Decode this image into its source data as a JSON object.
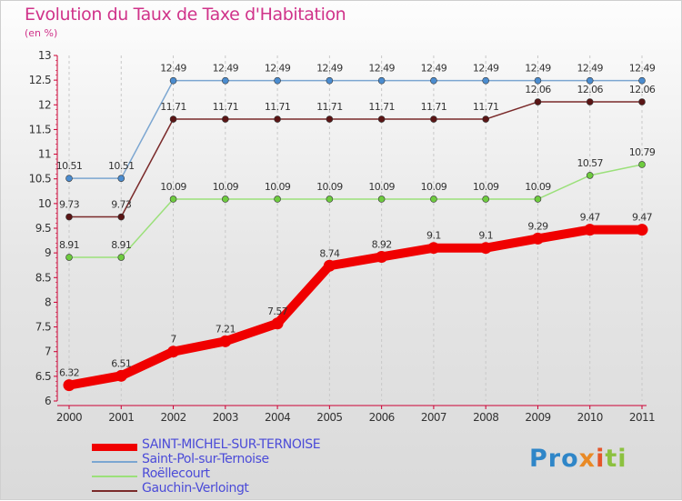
{
  "chart_data": {
    "type": "line",
    "title": "Evolution du Taux de Taxe d'Habitation",
    "unit_label": "(en %)",
    "xlabel": "",
    "ylabel": "",
    "x": [
      "2000",
      "2001",
      "2002",
      "2003",
      "2004",
      "2005",
      "2006",
      "2007",
      "2008",
      "2009",
      "2010",
      "2011"
    ],
    "ylim": [
      6,
      13
    ],
    "yticks": [
      "6",
      "6.5",
      "7",
      "7.5",
      "8",
      "8.5",
      "9",
      "9.5",
      "10",
      "10.5",
      "11",
      "11.5",
      "12",
      "12.5",
      "13"
    ],
    "grid": "vertical dashed",
    "legend_position": "bottom-left",
    "series": [
      {
        "name": "SAINT-MICHEL-SUR-TERNOISE",
        "color": "#f00000",
        "values": [
          6.32,
          6.51,
          7,
          7.21,
          7.57,
          8.74,
          8.92,
          9.1,
          9.1,
          9.29,
          9.47,
          9.47
        ],
        "labels": [
          "6.32",
          "6.51",
          "7",
          "7.21",
          "7.57",
          "8.74",
          "8.92",
          "9.1",
          "9.1",
          "9.29",
          "9.47",
          "9.47"
        ]
      },
      {
        "name": "Saint-Pol-sur-Ternoise",
        "color": "#7ba6d1",
        "marker_color": "#4b8ccf",
        "values": [
          10.51,
          10.51,
          12.49,
          12.49,
          12.49,
          12.49,
          12.49,
          12.49,
          12.49,
          12.49,
          12.49,
          12.49
        ],
        "labels": [
          "10.51",
          "10.51",
          "12.49",
          "12.49",
          "12.49",
          "12.49",
          "12.49",
          "12.49",
          "12.49",
          "12.49",
          "12.49",
          "12.49"
        ]
      },
      {
        "name": "Roëllecourt",
        "color": "#9be07a",
        "marker_color": "#6ecb3f",
        "values": [
          8.91,
          8.91,
          10.09,
          10.09,
          10.09,
          10.09,
          10.09,
          10.09,
          10.09,
          10.09,
          10.57,
          10.79
        ],
        "labels": [
          "8.91",
          "8.91",
          "10.09",
          "10.09",
          "10.09",
          "10.09",
          "10.09",
          "10.09",
          "10.09",
          "10.09",
          "10.57",
          "10.79"
        ]
      },
      {
        "name": "Gauchin-Verloingt",
        "color": "#7a2a2a",
        "marker_color": "#5a1515",
        "values": [
          9.73,
          9.73,
          11.71,
          11.71,
          11.71,
          11.71,
          11.71,
          11.71,
          11.71,
          12.06,
          12.06,
          12.06
        ],
        "labels": [
          "9.73",
          "9.73",
          "11.71",
          "11.71",
          "11.71",
          "11.71",
          "11.71",
          "11.71",
          "11.71",
          "12.06",
          "12.06",
          "12.06"
        ]
      }
    ]
  },
  "brand": {
    "p1": "Pro",
    "p2": "x",
    "p3": "i",
    "p4": "ti"
  },
  "colors": {
    "title": "#d0338a",
    "axis": "#cc0033",
    "legend_text": "#4b4bd8"
  }
}
